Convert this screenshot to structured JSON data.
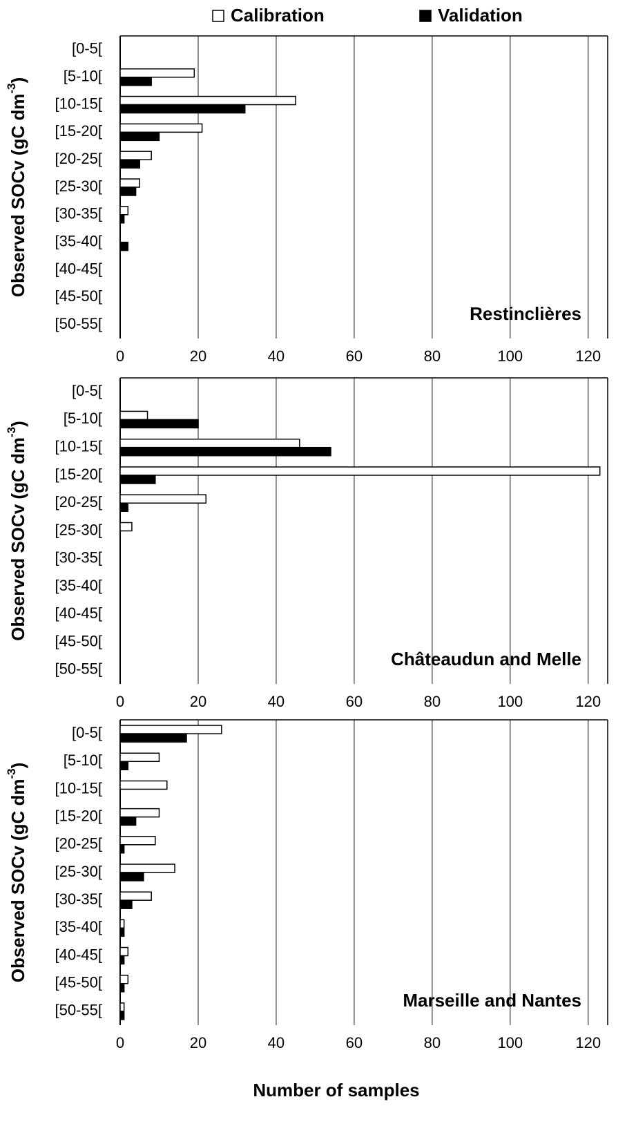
{
  "chart_data": [
    {
      "type": "bar",
      "orientation": "horizontal",
      "annotation": "Restinclières",
      "y_label": {
        "text": "Observed SOCv (gC dm",
        "superscript": "-3",
        "suffix": ")"
      },
      "categories": [
        "[0-5[",
        "[5-10[",
        "[10-15[",
        "[15-20[",
        "[20-25[",
        "[25-30[",
        "[30-35[",
        "[35-40[",
        "[40-45[",
        "[45-50[",
        "[50-55["
      ],
      "series": [
        {
          "name": "Calibration",
          "color": "#ffffff",
          "values": [
            0,
            19,
            45,
            21,
            8,
            5,
            2,
            0,
            0,
            0,
            0
          ]
        },
        {
          "name": "Validation",
          "color": "#000000",
          "values": [
            0,
            8,
            32,
            10,
            5,
            4,
            1,
            2,
            0,
            0,
            0
          ]
        }
      ],
      "xlim": [
        0,
        125
      ],
      "xticks": [
        0,
        20,
        40,
        60,
        80,
        100,
        120
      ],
      "grid": true
    },
    {
      "type": "bar",
      "orientation": "horizontal",
      "annotation": "Châteaudun and Melle",
      "y_label": {
        "text": "Observed SOCv (gC dm",
        "superscript": "-3",
        "suffix": ")"
      },
      "categories": [
        "[0-5[",
        "[5-10[",
        "[10-15[",
        "[15-20[",
        "[20-25[",
        "[25-30[",
        "[30-35[",
        "[35-40[",
        "[40-45[",
        "[45-50[",
        "[50-55["
      ],
      "series": [
        {
          "color": "#ffffff",
          "values": [
            0,
            7,
            46,
            123,
            22,
            3,
            0,
            0,
            0,
            0,
            0
          ]
        },
        {
          "color": "#000000",
          "values": [
            0,
            20,
            54,
            9,
            2,
            0,
            0,
            0,
            0,
            0,
            0
          ]
        }
      ],
      "xlim": [
        0,
        125
      ],
      "xticks": [
        0,
        20,
        40,
        60,
        80,
        100,
        120
      ],
      "grid": true
    },
    {
      "type": "bar",
      "orientation": "horizontal",
      "annotation": "Marseille and Nantes",
      "x_label": "Number of samples",
      "y_label": {
        "text": "Observed SOCv (gC dm",
        "superscript": "-3",
        "suffix": ")"
      },
      "categories": [
        "[0-5[",
        "[5-10[",
        "[10-15[",
        "[15-20[",
        "[20-25[",
        "[25-30[",
        "[30-35[",
        "[35-40[",
        "[40-45[",
        "[45-50[",
        "[50-55["
      ],
      "series": [
        {
          "color": "#ffffff",
          "values": [
            26,
            10,
            12,
            10,
            9,
            14,
            8,
            1,
            2,
            2,
            1
          ]
        },
        {
          "color": "#000000",
          "values": [
            17,
            2,
            0,
            4,
            1,
            6,
            3,
            1,
            1,
            1,
            1
          ]
        }
      ],
      "xlim": [
        0,
        125
      ],
      "xticks": [
        0,
        20,
        40,
        60,
        80,
        100,
        120
      ],
      "grid": true
    }
  ]
}
